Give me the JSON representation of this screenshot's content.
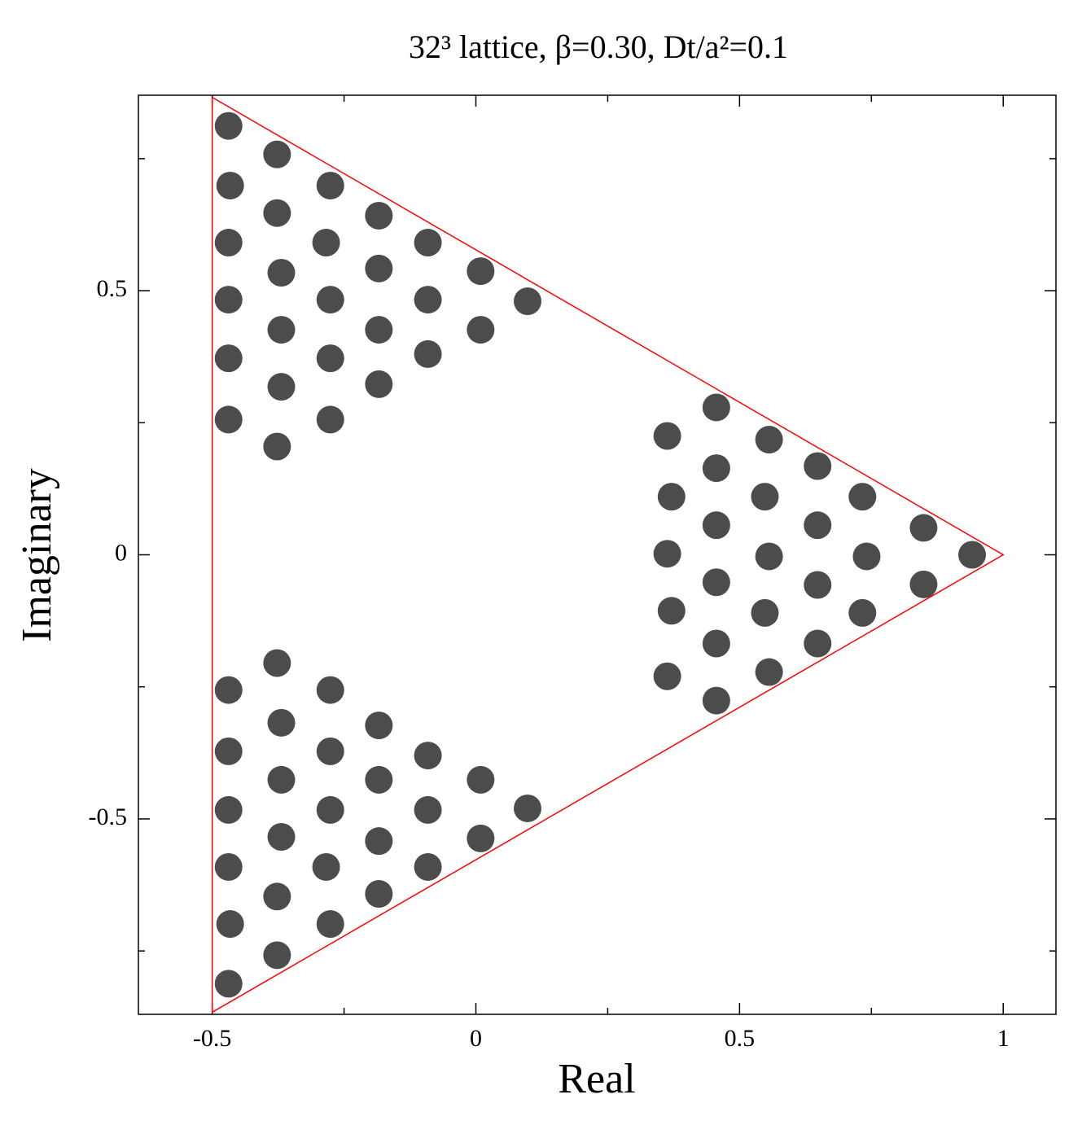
{
  "chart_data": {
    "type": "scatter",
    "title": "32³ lattice,  β=0.30,  Dt/a²=0.1",
    "x_label": "Real",
    "y_label": "Imaginary",
    "xlim": [
      -0.64,
      1.1
    ],
    "ylim": [
      -0.87,
      0.87
    ],
    "xticks": [
      -0.5,
      0,
      0.5,
      1
    ],
    "yticks": [
      -0.5,
      0,
      0.5
    ],
    "xminorticks": [
      -0.25,
      0.25,
      0.75
    ],
    "yminorticks": [
      -0.75,
      -0.25,
      0.25,
      0.75
    ],
    "series": [
      {
        "color": "#000000",
        "x": [
          -0.469,
          -0.377,
          -0.466,
          -0.276,
          -0.377,
          -0.184,
          -0.469,
          -0.284,
          -0.091,
          -0.369,
          -0.184,
          0.009,
          -0.469,
          -0.276,
          -0.091,
          0.098,
          -0.369,
          -0.184,
          0.009,
          -0.469,
          -0.276,
          -0.091,
          -0.369,
          -0.184,
          -0.469,
          -0.276,
          -0.377,
          -0.469,
          -0.377,
          -0.466,
          -0.276,
          -0.377,
          -0.184,
          -0.469,
          -0.284,
          -0.091,
          -0.369,
          -0.184,
          0.009,
          -0.469,
          -0.276,
          -0.091,
          0.098,
          -0.369,
          -0.184,
          0.009,
          -0.469,
          -0.276,
          -0.091,
          -0.369,
          -0.184,
          -0.469,
          -0.276,
          -0.377,
          0.456,
          0.556,
          0.648,
          0.363,
          0.456,
          0.548,
          0.733,
          0.371,
          0.456,
          0.648,
          0.849,
          0.363,
          0.556,
          0.741,
          0.941,
          0.456,
          0.648,
          0.849,
          0.371,
          0.548,
          0.733,
          0.456,
          0.648,
          0.363,
          0.556,
          0.456
        ],
        "y": [
          0.812,
          0.758,
          0.699,
          0.699,
          0.647,
          0.642,
          0.591,
          0.591,
          0.591,
          0.534,
          0.542,
          0.537,
          0.483,
          0.483,
          0.483,
          0.48,
          0.426,
          0.426,
          0.426,
          0.372,
          0.372,
          0.38,
          0.318,
          0.323,
          0.256,
          0.256,
          0.205,
          -0.812,
          -0.758,
          -0.699,
          -0.699,
          -0.647,
          -0.642,
          -0.591,
          -0.591,
          -0.591,
          -0.534,
          -0.542,
          -0.537,
          -0.483,
          -0.483,
          -0.483,
          -0.48,
          -0.426,
          -0.426,
          -0.426,
          -0.372,
          -0.372,
          -0.38,
          -0.318,
          -0.323,
          -0.256,
          -0.256,
          -0.205,
          0.279,
          0.218,
          0.168,
          0.225,
          0.164,
          0.11,
          0.11,
          0.11,
          0.056,
          0.056,
          0.051,
          0.002,
          -0.003,
          -0.003,
          0,
          -0.052,
          -0.057,
          -0.056,
          -0.106,
          -0.11,
          -0.11,
          -0.168,
          -0.168,
          -0.23,
          -0.222,
          -0.276
        ]
      },
      {
        "color": "#ff0000",
        "x": [
          -0.5,
          1,
          -0.5,
          -0.5
        ],
        "y": [
          0.866,
          0,
          -0.866,
          0.866
        ]
      }
    ]
  }
}
